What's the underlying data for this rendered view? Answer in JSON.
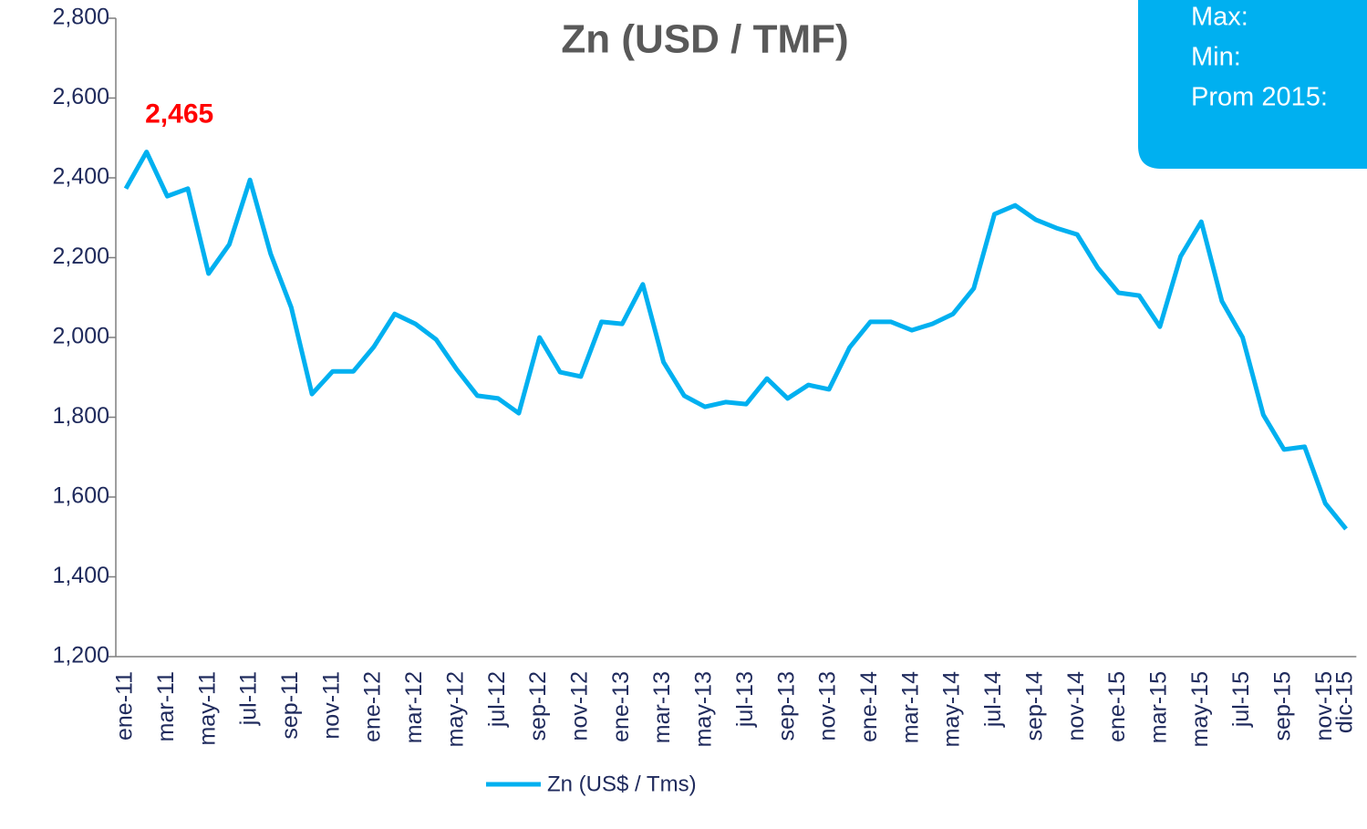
{
  "chart_data": {
    "type": "line",
    "title": "Zn (USD / TMF)",
    "categories": [
      "ene-11",
      null,
      "mar-11",
      null,
      "may-11",
      null,
      "jul-11",
      null,
      "sep-11",
      null,
      "nov-11",
      null,
      "ene-12",
      null,
      "mar-12",
      null,
      "may-12",
      null,
      "jul-12",
      null,
      "sep-12",
      null,
      "nov-12",
      null,
      "ene-13",
      null,
      "mar-13",
      null,
      "may-13",
      null,
      "jul-13",
      null,
      "sep-13",
      null,
      "nov-13",
      null,
      "ene-14",
      null,
      "mar-14",
      null,
      "may-14",
      null,
      "jul-14",
      null,
      "sep-14",
      null,
      "nov-14",
      null,
      "ene-15",
      null,
      "mar-15",
      null,
      "may-15",
      null,
      "jul-15",
      null,
      "sep-15",
      null,
      "nov-15",
      "dic-15"
    ],
    "series": [
      {
        "name": "Zn (US$ / Tms)",
        "color": "#00b0f0",
        "values": [
          2373,
          2465,
          2354,
          2373,
          2160,
          2233,
          2395,
          2210,
          2075,
          1858,
          1915,
          1915,
          1977,
          2059,
          2034,
          1995,
          1920,
          1854,
          1847,
          1810,
          2000,
          1913,
          1902,
          2039,
          2034,
          2133,
          1938,
          1854,
          1826,
          1838,
          1833,
          1897,
          1847,
          1881,
          1870,
          1975,
          2039,
          2039,
          2018,
          2034,
          2059,
          2123,
          2309,
          2331,
          2295,
          2274,
          2258,
          2174,
          2112,
          2105,
          2027,
          2203,
          2290,
          2091,
          2000,
          1806,
          1719,
          1726,
          1584,
          1520
        ],
        "value_labels": [
          null,
          "2,465",
          null,
          null,
          null,
          null,
          null,
          null,
          null,
          null,
          null,
          null,
          null,
          null,
          null,
          null,
          null,
          null,
          null,
          null,
          null,
          null,
          null,
          null,
          null,
          null,
          null,
          null,
          null,
          null,
          null,
          null,
          null,
          null,
          null,
          null,
          null,
          null,
          null,
          null,
          null,
          null,
          null,
          null,
          null,
          null,
          null,
          null,
          null,
          null,
          null,
          null,
          null,
          null,
          null,
          null,
          null,
          null,
          null,
          null
        ],
        "value_label_color": "#ff0000"
      }
    ],
    "ylim": [
      1200,
      2800
    ],
    "yticks": [
      {
        "value": 1200,
        "label": "1,200"
      },
      {
        "value": 1400,
        "label": "1,400"
      },
      {
        "value": 1600,
        "label": "1,600"
      },
      {
        "value": 1800,
        "label": "1,800"
      },
      {
        "value": 2000,
        "label": "2,000"
      },
      {
        "value": 2200,
        "label": "2,200"
      },
      {
        "value": 2400,
        "label": "2,400"
      },
      {
        "value": 2600,
        "label": "2,600"
      },
      {
        "value": 2800,
        "label": "2,800"
      }
    ],
    "grid": false,
    "legend": "bottom",
    "info_box": {
      "color": "#00b0f0",
      "lines": [
        "Max:",
        "Min:",
        "Prom 2015:"
      ]
    }
  }
}
